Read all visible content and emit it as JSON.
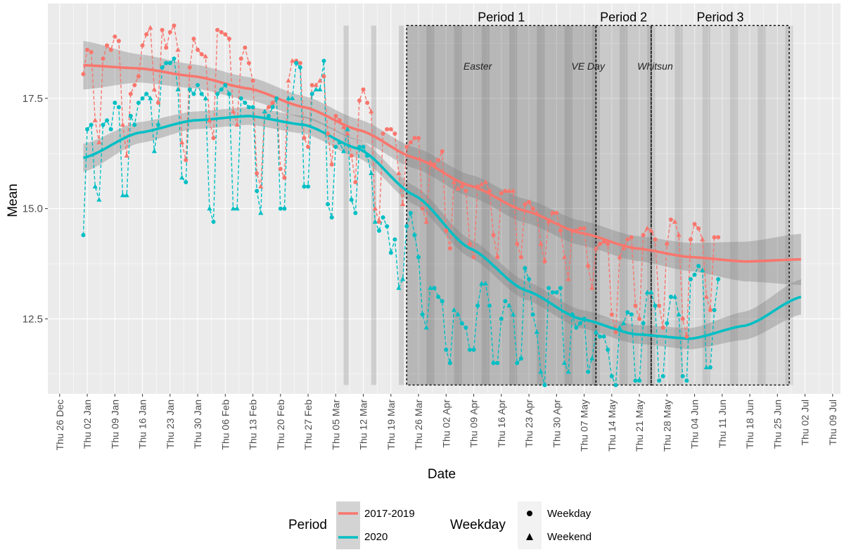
{
  "chart_data": {
    "type": "line",
    "xlabel": "Date",
    "ylabel": "Mean",
    "xlim": [
      "2019-12-23",
      "2020-07-11"
    ],
    "ylim": [
      10.8,
      19.65
    ],
    "yticks": [
      12.5,
      15.0,
      17.5
    ],
    "ytick_labels": [
      "12.5",
      "15.0",
      "17.5"
    ],
    "xticks": [
      "2019-12-26",
      "2020-01-02",
      "2020-01-09",
      "2020-01-16",
      "2020-01-23",
      "2020-01-30",
      "2020-02-06",
      "2020-02-13",
      "2020-02-20",
      "2020-02-27",
      "2020-03-05",
      "2020-03-12",
      "2020-03-19",
      "2020-03-26",
      "2020-04-02",
      "2020-04-09",
      "2020-04-16",
      "2020-04-23",
      "2020-04-30",
      "2020-05-07",
      "2020-05-14",
      "2020-05-21",
      "2020-05-28",
      "2020-06-04",
      "2020-06-11",
      "2020-06-18",
      "2020-06-25",
      "2020-07-02",
      "2020-07-09"
    ],
    "xtick_labels": [
      "Thu 26 Dec",
      "Thu 02 Jan",
      "Thu 09 Jan",
      "Thu 16 Jan",
      "Thu 23 Jan",
      "Thu 30 Jan",
      "Thu 06 Feb",
      "Thu 13 Feb",
      "Thu 20 Feb",
      "Thu 27 Feb",
      "Thu 05 Mar",
      "Thu 12 Mar",
      "Thu 19 Mar",
      "Thu 26 Mar",
      "Thu 02 Apr",
      "Thu 09 Apr",
      "Thu 16 Apr",
      "Thu 23 Apr",
      "Thu 30 Apr",
      "Thu 07 May",
      "Thu 14 May",
      "Thu 21 May",
      "Thu 28 May",
      "Thu 04 Jun",
      "Thu 11 Jun",
      "Thu 18 Jun",
      "Thu 25 Jun",
      "Thu 02 Jul",
      "Thu 09 Jul"
    ],
    "series": [
      {
        "name": "2017-2019",
        "color": "#F8766D",
        "daily_x_start": "2020-01-01",
        "daily_values": [
          18.05,
          18.6,
          18.55,
          17.0,
          16.5,
          18.4,
          18.7,
          18.6,
          18.9,
          18.8,
          16.9,
          16.2,
          17.6,
          17.8,
          18.0,
          18.7,
          18.95,
          19.1,
          17.7,
          17.4,
          19.05,
          18.65,
          19.0,
          19.15,
          18.6,
          16.5,
          16.1,
          18.2,
          18.85,
          18.6,
          18.5,
          18.45,
          17.0,
          16.6,
          19.05,
          19.0,
          18.95,
          18.85,
          17.2,
          16.9,
          18.4,
          18.65,
          18.3,
          17.9,
          15.8,
          15.5,
          17.2,
          17.3,
          17.4,
          17.5,
          15.9,
          15.7,
          17.9,
          18.35,
          18.35,
          18.3,
          16.6,
          16.4,
          17.8,
          17.8,
          17.9,
          18.0,
          16.7,
          16.0,
          17.1,
          17.0,
          16.85,
          16.7,
          16.2,
          15.6,
          17.45,
          17.7,
          17.4,
          17.2,
          15.0,
          14.7,
          16.7,
          16.8,
          16.8,
          16.7,
          15.8,
          15.1,
          16.4,
          16.5,
          16.6,
          16.6,
          15.0,
          14.7,
          16.05,
          16.0,
          16.1,
          16.3,
          14.5,
          14.1,
          15.6,
          15.45,
          15.5,
          15.4,
          14.2,
          13.9,
          15.5,
          15.55,
          15.6,
          15.4,
          14.4,
          13.9,
          15.35,
          15.4,
          15.4,
          15.4,
          14.2,
          13.9,
          15.1,
          15.15,
          15.0,
          14.9,
          14.2,
          13.8,
          14.7,
          14.9,
          14.9,
          14.5,
          13.9,
          13.4,
          14.5,
          14.5,
          14.55,
          14.55,
          13.7,
          13.2,
          14.1,
          14.2,
          14.25,
          14.2,
          12.6,
          12.2,
          13.9,
          14.1,
          14.3,
          14.35,
          12.8,
          12.5,
          14.4,
          14.55,
          14.5,
          14.3,
          12.8,
          12.3,
          14.2,
          14.75,
          14.7,
          14.4,
          12.5,
          12.1,
          14.3,
          14.65,
          14.55,
          14.3,
          13.0,
          12.7,
          14.35,
          14.35
        ],
        "smooth": [
          [
            0,
            18.25
          ],
          [
            14,
            18.18
          ],
          [
            28,
            18.0
          ],
          [
            42,
            17.72
          ],
          [
            56,
            17.3
          ],
          [
            70,
            16.78
          ],
          [
            84,
            16.15
          ],
          [
            98,
            15.52
          ],
          [
            112,
            14.95
          ],
          [
            126,
            14.45
          ],
          [
            140,
            14.1
          ],
          [
            154,
            13.9
          ],
          [
            168,
            13.8
          ],
          [
            182,
            13.85
          ]
        ],
        "band_halfwidth": [
          [
            0,
            0.55
          ],
          [
            14,
            0.32
          ],
          [
            28,
            0.27
          ],
          [
            42,
            0.26
          ],
          [
            56,
            0.25
          ],
          [
            70,
            0.24
          ],
          [
            84,
            0.24
          ],
          [
            98,
            0.25
          ],
          [
            112,
            0.27
          ],
          [
            126,
            0.28
          ],
          [
            140,
            0.28
          ],
          [
            154,
            0.32
          ],
          [
            168,
            0.45
          ],
          [
            182,
            0.58
          ]
        ]
      },
      {
        "name": "2020",
        "color": "#00BFC4",
        "daily_x_start": "2020-01-01",
        "daily_values": [
          14.4,
          16.8,
          16.9,
          15.5,
          15.2,
          16.9,
          17.0,
          16.8,
          17.4,
          17.3,
          15.3,
          15.3,
          17.1,
          16.9,
          17.4,
          17.5,
          17.6,
          17.5,
          16.3,
          16.9,
          18.2,
          18.3,
          18.3,
          18.4,
          17.7,
          15.7,
          15.6,
          17.7,
          17.6,
          17.8,
          17.6,
          17.5,
          15.0,
          14.7,
          17.6,
          17.7,
          17.8,
          17.6,
          15.0,
          15.0,
          17.5,
          17.4,
          17.3,
          17.3,
          15.4,
          14.9,
          17.2,
          17.1,
          17.3,
          17.5,
          15.0,
          15.0,
          17.5,
          17.5,
          18.3,
          18.2,
          15.5,
          15.5,
          17.6,
          17.7,
          17.7,
          18.35,
          15.1,
          14.8,
          16.4,
          16.5,
          16.3,
          16.8,
          15.2,
          14.9,
          16.4,
          16.4,
          16.2,
          15.8,
          14.7,
          14.5,
          14.8,
          14.6,
          14.0,
          14.3,
          13.2,
          13.4,
          14.6,
          14.9,
          14.4,
          13.9,
          12.6,
          12.3,
          13.2,
          13.2,
          13.0,
          12.9,
          11.8,
          11.5,
          12.7,
          12.6,
          12.4,
          12.3,
          11.8,
          11.8,
          12.8,
          13.3,
          13.3,
          12.8,
          11.5,
          11.5,
          12.5,
          12.9,
          12.8,
          12.6,
          11.5,
          11.6,
          13.65,
          13.4,
          12.6,
          12.2,
          11.3,
          11.0,
          13.2,
          13.1,
          13.1,
          13.2,
          11.5,
          11.3,
          12.6,
          12.3,
          12.4,
          12.5,
          11.3,
          11.6,
          12.2,
          12.1,
          12.1,
          11.8,
          11.2,
          11.0,
          12.3,
          12.4,
          12.65,
          12.6,
          11.1,
          11.1,
          12.4,
          13.1,
          13.1,
          12.8,
          11.1,
          11.2,
          12.4,
          13.0,
          13.0,
          12.6,
          11.2,
          11.1,
          13.4,
          13.5,
          13.7,
          13.6,
          11.4,
          11.4,
          12.7,
          13.4
        ],
        "smooth": [
          [
            0,
            16.15
          ],
          [
            14,
            16.72
          ],
          [
            28,
            17.0
          ],
          [
            42,
            17.1
          ],
          [
            56,
            16.9
          ],
          [
            70,
            16.35
          ],
          [
            84,
            15.3
          ],
          [
            98,
            14.1
          ],
          [
            112,
            13.15
          ],
          [
            126,
            12.5
          ],
          [
            140,
            12.15
          ],
          [
            154,
            12.05
          ],
          [
            168,
            12.35
          ],
          [
            182,
            13.0
          ]
        ],
        "band_halfwidth": [
          [
            0,
            0.32
          ],
          [
            14,
            0.24
          ],
          [
            28,
            0.2
          ],
          [
            42,
            0.2
          ],
          [
            56,
            0.2
          ],
          [
            70,
            0.21
          ],
          [
            84,
            0.21
          ],
          [
            98,
            0.21
          ],
          [
            112,
            0.21
          ],
          [
            126,
            0.21
          ],
          [
            140,
            0.21
          ],
          [
            154,
            0.24
          ],
          [
            168,
            0.32
          ],
          [
            182,
            0.4
          ]
        ]
      }
    ],
    "periods": [
      {
        "label": "Period 1",
        "start": "2020-03-23",
        "end": "2020-05-10"
      },
      {
        "label": "Period 2",
        "start": "2020-05-10",
        "end": "2020-05-24"
      },
      {
        "label": "Period 3",
        "start": "2020-05-24",
        "end": "2020-06-28"
      }
    ],
    "holidays": [
      {
        "label": "Easter",
        "date": "2020-04-10"
      },
      {
        "label": "VE Day",
        "date": "2020-05-08"
      },
      {
        "label": "Whitsun",
        "date": "2020-05-25"
      }
    ],
    "shaded_bars": {
      "light_days_before_period": [
        "2020-03-07",
        "2020-03-14",
        "2020-03-21"
      ],
      "y_range": [
        11.0,
        19.15
      ],
      "note": "grey bands mark weekends; dark tint inside Period 1"
    },
    "legend": {
      "period_title": "Period",
      "period_items": [
        "2017-2019",
        "2020"
      ],
      "weekday_title": "Weekday",
      "weekday_items": [
        "Weekday",
        "Weekend"
      ],
      "placement": "bottom"
    }
  }
}
